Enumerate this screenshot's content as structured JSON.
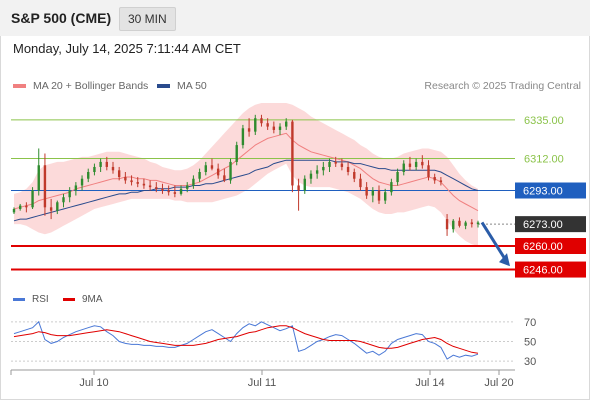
{
  "header": {
    "symbol": "S&P 500 (CME)",
    "timeframe": "30 MIN"
  },
  "datetime": "Monday, July 14, 2025 7:11:44 AM CET",
  "legend": {
    "bollinger": {
      "label": "MA 20 + Bollinger Bands",
      "color": "#f08080"
    },
    "ma50": {
      "label": "MA 50",
      "color": "#2a4b8d"
    }
  },
  "credit": "Research © 2025 Trading Central",
  "rsi_legend": {
    "rsi": {
      "label": "RSI",
      "color": "#4a78d6"
    },
    "ma9": {
      "label": "9MA",
      "color": "#e00000"
    }
  },
  "colors": {
    "up": "#2e8b2e",
    "down": "#c0392b",
    "band": "#fbd3d3",
    "green_level": "#8bc34a",
    "red_level": "#e00000",
    "blue_level": "#1f5fbf",
    "last_price": "#333333",
    "arrow": "#2a5ca8"
  },
  "chart_data": {
    "type": "candlestick",
    "x_labels": [
      "Jul 10",
      "Jul 11",
      "Jul 14",
      "Jul 20"
    ],
    "ylim": [
      6238,
      6348
    ],
    "levels": [
      {
        "value": 6335.0,
        "label": "6335.00",
        "kind": "resistance"
      },
      {
        "value": 6312.0,
        "label": "6312.00",
        "kind": "resistance"
      },
      {
        "value": 6293.0,
        "label": "6293.00",
        "kind": "pivot"
      },
      {
        "value": 6273.0,
        "label": "6273.00",
        "kind": "last"
      },
      {
        "value": 6260.0,
        "label": "6260.00",
        "kind": "support"
      },
      {
        "value": 6246.0,
        "label": "6246.00",
        "kind": "support"
      }
    ],
    "candles": [
      [
        6280,
        6283,
        6279,
        6282
      ],
      [
        6282,
        6285,
        6281,
        6284
      ],
      [
        6284,
        6286,
        6280,
        6283
      ],
      [
        6283,
        6295,
        6282,
        6293
      ],
      [
        6293,
        6318,
        6290,
        6308
      ],
      [
        6308,
        6315,
        6278,
        6283
      ],
      [
        6283,
        6288,
        6276,
        6281
      ],
      [
        6281,
        6287,
        6279,
        6286
      ],
      [
        6286,
        6291,
        6283,
        6289
      ],
      [
        6289,
        6295,
        6286,
        6293
      ],
      [
        6293,
        6298,
        6290,
        6296
      ],
      [
        6296,
        6302,
        6293,
        6300
      ],
      [
        6300,
        6306,
        6298,
        6304
      ],
      [
        6304,
        6309,
        6302,
        6307
      ],
      [
        6307,
        6312,
        6304,
        6310
      ],
      [
        6310,
        6313,
        6305,
        6307
      ],
      [
        6307,
        6310,
        6303,
        6305
      ],
      [
        6305,
        6307,
        6299,
        6301
      ],
      [
        6301,
        6304,
        6297,
        6299
      ],
      [
        6299,
        6302,
        6296,
        6298
      ],
      [
        6298,
        6301,
        6295,
        6297
      ],
      [
        6297,
        6300,
        6294,
        6296
      ],
      [
        6296,
        6299,
        6293,
        6295
      ],
      [
        6295,
        6298,
        6292,
        6294
      ],
      [
        6294,
        6297,
        6291,
        6293
      ],
      [
        6293,
        6296,
        6290,
        6292
      ],
      [
        6292,
        6296,
        6289,
        6291
      ],
      [
        6291,
        6296,
        6290,
        6294
      ],
      [
        6294,
        6298,
        6292,
        6296
      ],
      [
        6296,
        6302,
        6294,
        6300
      ],
      [
        6300,
        6306,
        6298,
        6304
      ],
      [
        6304,
        6310,
        6302,
        6308
      ],
      [
        6308,
        6312,
        6305,
        6306
      ],
      [
        6306,
        6309,
        6300,
        6302
      ],
      [
        6302,
        6306,
        6298,
        6299
      ],
      [
        6299,
        6312,
        6297,
        6310
      ],
      [
        6310,
        6322,
        6308,
        6320
      ],
      [
        6320,
        6332,
        6318,
        6330
      ],
      [
        6330,
        6336,
        6325,
        6328
      ],
      [
        6328,
        6338,
        6326,
        6336
      ],
      [
        6336,
        6338,
        6331,
        6333
      ],
      [
        6333,
        6336,
        6329,
        6331
      ],
      [
        6331,
        6334,
        6327,
        6329
      ],
      [
        6329,
        6333,
        6326,
        6331
      ],
      [
        6331,
        6336,
        6329,
        6334
      ],
      [
        6334,
        6335,
        6292,
        6296
      ],
      [
        6296,
        6300,
        6281,
        6293
      ],
      [
        6293,
        6302,
        6291,
        6300
      ],
      [
        6300,
        6305,
        6297,
        6303
      ],
      [
        6303,
        6308,
        6300,
        6305
      ],
      [
        6305,
        6310,
        6302,
        6307
      ],
      [
        6307,
        6312,
        6304,
        6310
      ],
      [
        6310,
        6313,
        6307,
        6309
      ],
      [
        6309,
        6312,
        6305,
        6307
      ],
      [
        6307,
        6310,
        6302,
        6304
      ],
      [
        6304,
        6306,
        6298,
        6300
      ],
      [
        6300,
        6303,
        6293,
        6295
      ],
      [
        6295,
        6298,
        6288,
        6290
      ],
      [
        6290,
        6295,
        6286,
        6293
      ],
      [
        6293,
        6296,
        6285,
        6287
      ],
      [
        6287,
        6294,
        6285,
        6292
      ],
      [
        6292,
        6300,
        6290,
        6298
      ],
      [
        6298,
        6306,
        6296,
        6304
      ],
      [
        6304,
        6311,
        6302,
        6309
      ],
      [
        6309,
        6313,
        6305,
        6307
      ],
      [
        6307,
        6312,
        6305,
        6310
      ],
      [
        6310,
        6314,
        6306,
        6308
      ],
      [
        6308,
        6311,
        6299,
        6301
      ],
      [
        6301,
        6303,
        6297,
        6299
      ],
      [
        6299,
        6301,
        6296,
        6298
      ],
      [
        6276,
        6279,
        6266,
        6270
      ],
      [
        6270,
        6276,
        6268,
        6275
      ],
      [
        6275,
        6277,
        6271,
        6272
      ],
      [
        6272,
        6275,
        6270,
        6274
      ],
      [
        6274,
        6276,
        6271,
        6273
      ],
      [
        6273,
        6275,
        6271,
        6274
      ]
    ],
    "ma20": [
      6282,
      6283,
      6284,
      6285,
      6287,
      6288,
      6289,
      6290,
      6291,
      6292,
      6294,
      6295,
      6296,
      6297,
      6298,
      6299,
      6300,
      6300,
      6301,
      6301,
      6300,
      6300,
      6299,
      6299,
      6298,
      6297,
      6296,
      6296,
      6296,
      6297,
      6298,
      6300,
      6302,
      6304,
      6306,
      6308,
      6311,
      6314,
      6317,
      6320,
      6322,
      6324,
      6325,
      6326,
      6327,
      6323,
      6320,
      6318,
      6316,
      6315,
      6314,
      6313,
      6312,
      6311,
      6310,
      6308,
      6306,
      6303,
      6300,
      6298,
      6297,
      6296,
      6296,
      6297,
      6298,
      6299,
      6300,
      6301,
      6300,
      6298,
      6294,
      6290,
      6287,
      6285,
      6283,
      6281
    ],
    "band_upper": [
      6291,
      6292,
      6294,
      6298,
      6305,
      6308,
      6309,
      6310,
      6310,
      6311,
      6312,
      6313,
      6313,
      6314,
      6315,
      6316,
      6316,
      6316,
      6315,
      6314,
      6313,
      6312,
      6310,
      6309,
      6307,
      6306,
      6305,
      6305,
      6306,
      6308,
      6311,
      6315,
      6319,
      6323,
      6327,
      6331,
      6335,
      6339,
      6342,
      6344,
      6345,
      6345,
      6345,
      6345,
      6345,
      6344,
      6342,
      6340,
      6337,
      6335,
      6333,
      6331,
      6329,
      6327,
      6325,
      6323,
      6320,
      6318,
      6315,
      6313,
      6312,
      6312,
      6313,
      6315,
      6316,
      6317,
      6318,
      6318,
      6317,
      6316,
      6313,
      6308,
      6303,
      6299,
      6296,
      6294
    ],
    "band_lower": [
      6273,
      6273,
      6272,
      6270,
      6268,
      6267,
      6268,
      6270,
      6272,
      6274,
      6276,
      6278,
      6280,
      6282,
      6283,
      6284,
      6285,
      6286,
      6287,
      6288,
      6288,
      6288,
      6288,
      6288,
      6288,
      6288,
      6287,
      6287,
      6286,
      6286,
      6286,
      6286,
      6286,
      6287,
      6288,
      6289,
      6290,
      6292,
      6294,
      6297,
      6300,
      6303,
      6305,
      6307,
      6309,
      6302,
      6298,
      6296,
      6295,
      6295,
      6295,
      6295,
      6294,
      6293,
      6292,
      6290,
      6288,
      6285,
      6282,
      6280,
      6279,
      6279,
      6280,
      6280,
      6281,
      6282,
      6283,
      6284,
      6283,
      6280,
      6275,
      6270,
      6266,
      6263,
      6261,
      6260
    ],
    "ma50": [
      6275,
      6276,
      6276,
      6277,
      6278,
      6279,
      6280,
      6281,
      6282,
      6283,
      6284,
      6285,
      6286,
      6287,
      6288,
      6289,
      6290,
      6291,
      6291,
      6292,
      6292,
      6293,
      6293,
      6294,
      6294,
      6294,
      6295,
      6295,
      6295,
      6296,
      6296,
      6297,
      6297,
      6298,
      6299,
      6300,
      6301,
      6302,
      6303,
      6305,
      6306,
      6307,
      6309,
      6310,
      6311,
      6311,
      6311,
      6311,
      6311,
      6311,
      6311,
      6311,
      6310,
      6310,
      6310,
      6309,
      6309,
      6308,
      6307,
      6306,
      6306,
      6305,
      6305,
      6305,
      6305,
      6305,
      6305,
      6305,
      6305,
      6304,
      6302,
      6300,
      6298,
      6296,
      6294,
      6293
    ],
    "rsi": {
      "ylim": [
        25,
        78
      ],
      "ticks": [
        70,
        50,
        30
      ],
      "rsi_values": [
        58,
        60,
        62,
        64,
        70,
        52,
        48,
        50,
        54,
        57,
        60,
        62,
        64,
        66,
        65,
        60,
        56,
        50,
        48,
        47,
        47,
        46,
        46,
        45,
        45,
        44,
        44,
        46,
        48,
        52,
        56,
        60,
        62,
        58,
        54,
        50,
        58,
        64,
        68,
        66,
        70,
        67,
        64,
        61,
        63,
        66,
        40,
        42,
        46,
        50,
        52,
        55,
        57,
        56,
        52,
        48,
        43,
        38,
        40,
        36,
        40,
        48,
        52,
        54,
        56,
        58,
        57,
        50,
        48,
        44,
        32,
        36,
        34,
        36,
        35,
        37
      ],
      "ma9_values": [
        55,
        56,
        57,
        58,
        60,
        59,
        57,
        56,
        56,
        56,
        57,
        58,
        59,
        60,
        61,
        62,
        61,
        60,
        58,
        56,
        54,
        52,
        50,
        49,
        48,
        47,
        46,
        46,
        46,
        46,
        47,
        48,
        50,
        52,
        53,
        54,
        55,
        57,
        59,
        60,
        62,
        64,
        65,
        66,
        66,
        64,
        61,
        58,
        56,
        54,
        52,
        51,
        51,
        51,
        51,
        51,
        50,
        48,
        46,
        44,
        43,
        43,
        44,
        46,
        48,
        50,
        52,
        53,
        54,
        52,
        48,
        45,
        43,
        41,
        39,
        38
      ]
    }
  }
}
